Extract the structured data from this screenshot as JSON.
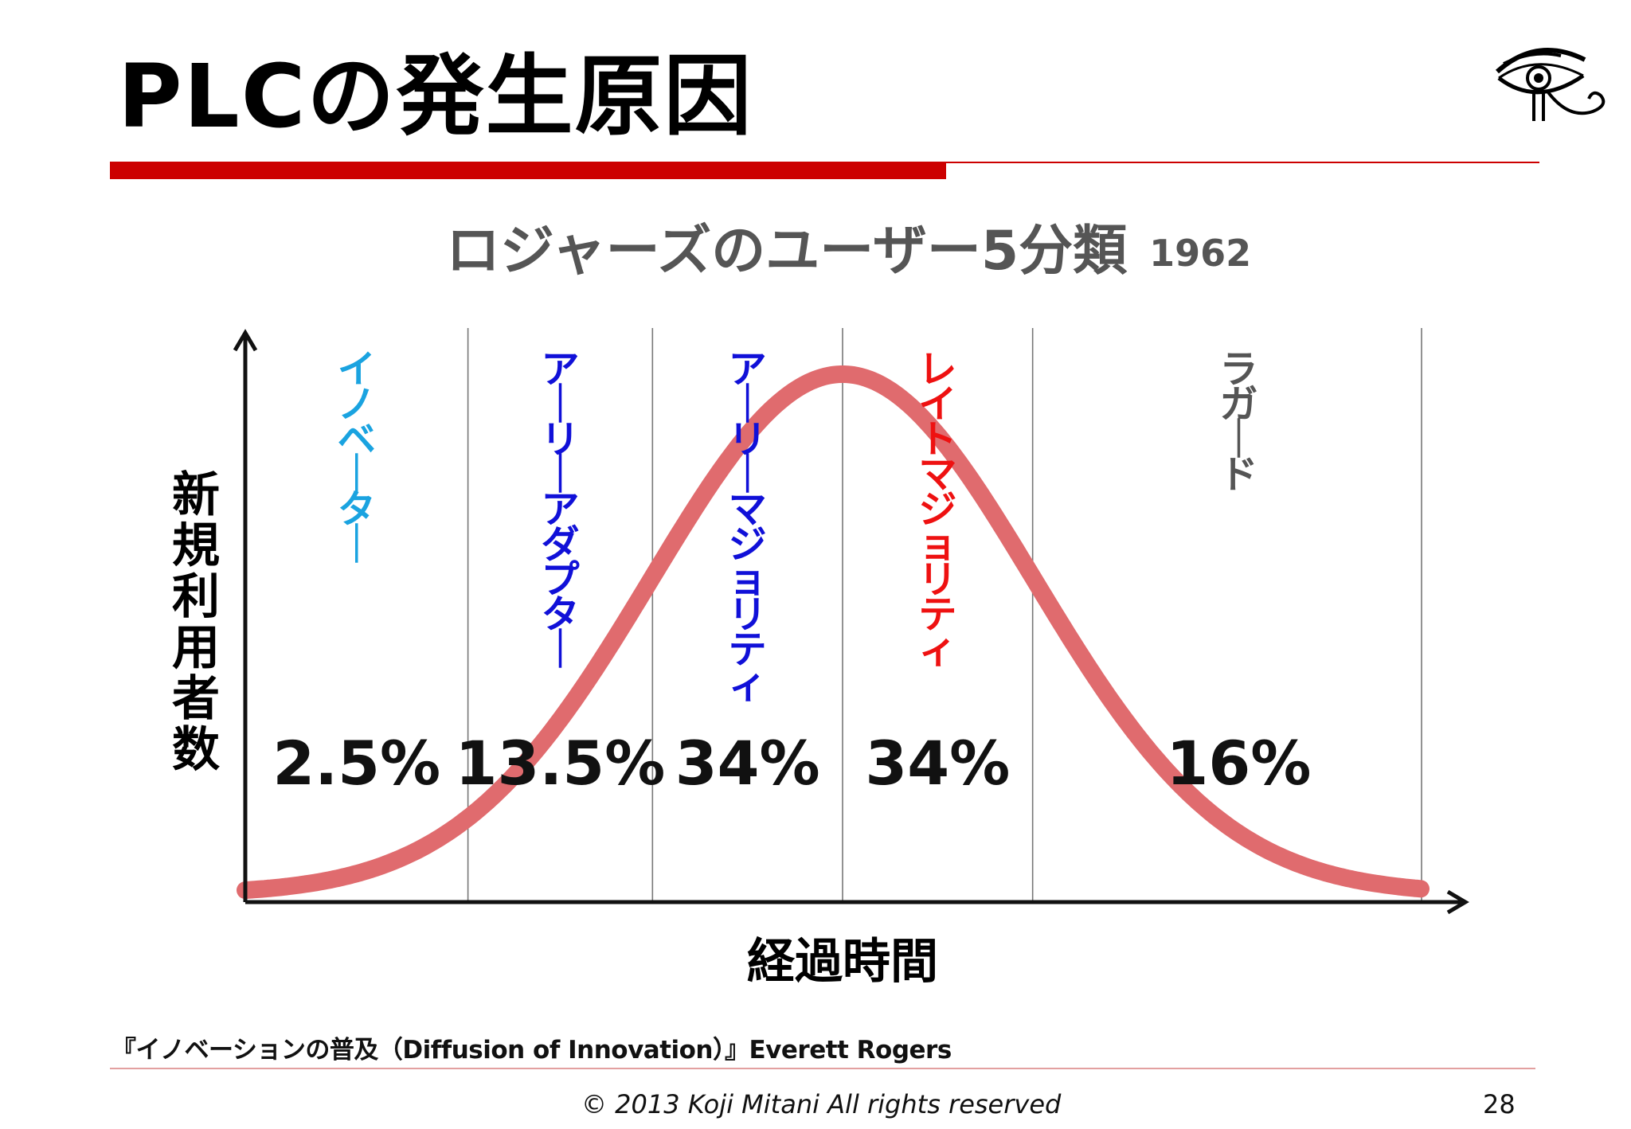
{
  "slide": {
    "title": "PLCの発生原因",
    "subtitle": "ロジャーズのユーザー5分類",
    "subtitle_year": "1962",
    "source": "『イノベーションの普及（Diffusion of Innovation）』Everett Rogers",
    "copyright": "© 2013 Koji Mitani All rights reserved",
    "page_number": "28",
    "logo_icon": "eye-of-horus-icon"
  },
  "chart_data": {
    "type": "area",
    "xlabel": "経過時間",
    "ylabel": "新規利用者数",
    "curve": "normal-distribution",
    "grid": false,
    "colors": {
      "curve": "#e06b6e",
      "axis": "#111111",
      "divider": "#777777"
    },
    "segments": [
      {
        "name": "イノベーター",
        "percent": 2.5,
        "label": "2.5%",
        "color": "#1aa3e0"
      },
      {
        "name": "アーリーアダプター",
        "percent": 13.5,
        "label": "13.5%",
        "color": "#1010d8"
      },
      {
        "name": "アーリーマジョリティ",
        "percent": 34,
        "label": "34%",
        "color": "#1010d8"
      },
      {
        "name": "レイトマジョリティ",
        "percent": 34,
        "label": "34%",
        "color": "#ee1111"
      },
      {
        "name": "ラガード",
        "percent": 16,
        "label": "16%",
        "color": "#555555"
      }
    ]
  }
}
